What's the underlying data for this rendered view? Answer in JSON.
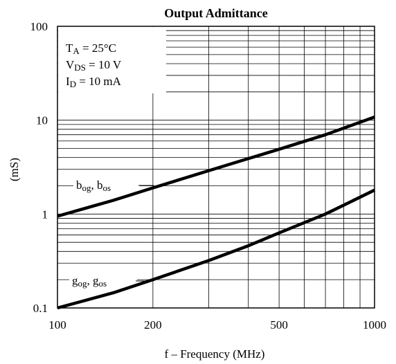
{
  "chart_data": {
    "type": "line",
    "title": "Output Admittance",
    "x_label": "f – Frequency (MHz)",
    "y_label": "(mS)",
    "xscale": "log",
    "yscale": "log",
    "xlim": [
      100,
      1000
    ],
    "ylim": [
      0.1,
      100
    ],
    "xticks": [
      100,
      200,
      500,
      1000
    ],
    "yticks": [
      0.1,
      1,
      10,
      100
    ],
    "xgrid": [
      100,
      200,
      300,
      400,
      500,
      600,
      700,
      800,
      900,
      1000
    ],
    "ygrid": [
      0.1,
      0.2,
      0.3,
      0.4,
      0.5,
      0.6,
      0.7,
      0.8,
      0.9,
      1,
      2,
      3,
      4,
      5,
      6,
      7,
      8,
      9,
      10,
      20,
      30,
      40,
      50,
      60,
      70,
      80,
      90,
      100
    ],
    "grid": true,
    "series": [
      {
        "name": [
          {
            "text": "b"
          },
          {
            "text": "og",
            "sub": true
          },
          {
            "text": ", b"
          },
          {
            "text": "os",
            "sub": true
          }
        ],
        "color": "#000000",
        "x": [
          100,
          150,
          200,
          300,
          400,
          500,
          700,
          1000
        ],
        "values": [
          0.95,
          1.4,
          1.9,
          2.9,
          3.9,
          4.9,
          7.0,
          10.8
        ]
      },
      {
        "name": [
          {
            "text": "g"
          },
          {
            "text": "og",
            "sub": true
          },
          {
            "text": ", g"
          },
          {
            "text": "os",
            "sub": true
          }
        ],
        "color": "#000000",
        "x": [
          100,
          150,
          200,
          300,
          400,
          500,
          700,
          1000
        ],
        "values": [
          0.1,
          0.145,
          0.2,
          0.32,
          0.46,
          0.63,
          1.0,
          1.8
        ]
      }
    ],
    "conditions": [
      [
        {
          "text": "T"
        },
        {
          "text": "A",
          "sub": true
        },
        {
          "text": " = 25°C"
        }
      ],
      [
        {
          "text": "V"
        },
        {
          "text": "DS",
          "sub": true
        },
        {
          "text": " = 10 V"
        }
      ],
      [
        {
          "text": "I"
        },
        {
          "text": "D",
          "sub": true
        },
        {
          "text": " = 10 mA"
        }
      ]
    ]
  }
}
